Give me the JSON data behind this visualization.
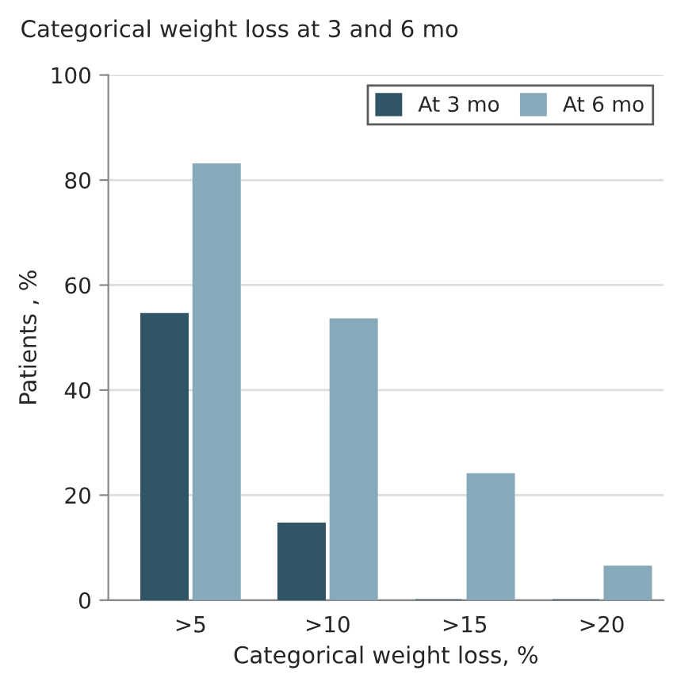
{
  "chart_data": {
    "type": "bar",
    "title": "Categorical weight loss at 3 and 6 mo",
    "xlabel": "Categorical weight loss, %",
    "ylabel": "Patients , %",
    "categories": [
      ">5",
      ">10",
      ">15",
      ">20"
    ],
    "series": [
      {
        "name": "At 3 mo",
        "color": "#2f5566",
        "values": [
          54.5,
          14.6,
          0,
          0
        ]
      },
      {
        "name": "At 6 mo",
        "color": "#87aabb",
        "values": [
          83,
          53.5,
          24,
          6.4
        ]
      }
    ],
    "ylim": [
      0,
      100
    ],
    "yticks": [
      0,
      20,
      40,
      60,
      80,
      100
    ],
    "grid": "y",
    "legend": "top right"
  }
}
